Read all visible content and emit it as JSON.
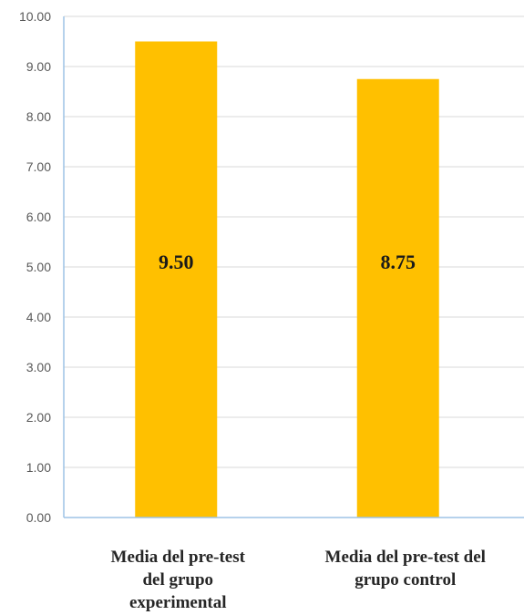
{
  "chart_data": {
    "type": "bar",
    "categories": [
      [
        "Media del pre-test",
        "del grupo",
        "experimental"
      ],
      [
        "Media del pre-test del",
        "grupo control"
      ]
    ],
    "values": [
      9.5,
      8.75
    ],
    "data_labels": [
      "9.50",
      "8.75"
    ],
    "y_ticks": [
      "0.00",
      "1.00",
      "2.00",
      "3.00",
      "4.00",
      "5.00",
      "6.00",
      "7.00",
      "8.00",
      "9.00",
      "10.00"
    ],
    "ylim": [
      0,
      10
    ],
    "grid": true,
    "bar_color": "#FFC000",
    "grid_color": "#D9D9D9",
    "axis_color": "#9DC3E6"
  }
}
